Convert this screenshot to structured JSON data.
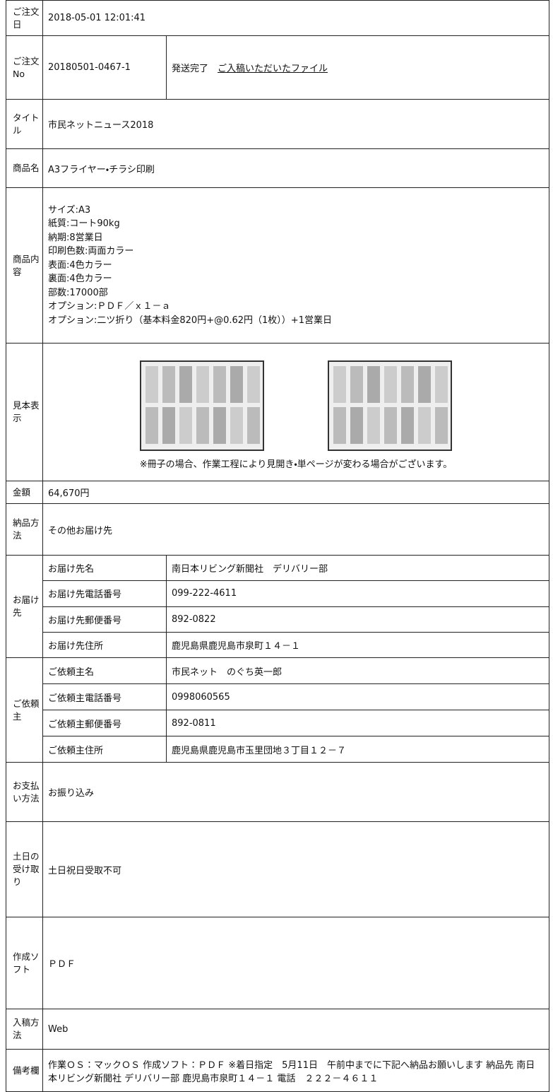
{
  "order": {
    "rows": [
      {
        "label": "ご注文日",
        "value": "2018-05-01 12:01:41"
      },
      {
        "label": "ご注文No",
        "value": "20180501-0467-1",
        "status": "発送完了",
        "link": "ご入稿いただいたファイル"
      },
      {
        "label": "タイトル",
        "value": "市民ネットニュース2018"
      },
      {
        "label": "商品名",
        "value": "A3フライヤー・チラシ印刷"
      },
      {
        "label": "商品内容",
        "lines": [
          "サイズ:A3",
          "紙質:コート90kg",
          "納期:8営業日",
          "印刷色数:両面カラー",
          "表面:4色カラー",
          "裏面:4色カラー",
          "部数:17000部",
          "オプション:ＰＤＦ／ｘ１－ａ",
          "オプション:二ツ折り（基本料金820円+@0.62円（1枚））+1営業日"
        ]
      },
      {
        "label": "見本表示",
        "note": "※冊子の場合、作業工程により見開き・単ページが変わる場合がございます。"
      },
      {
        "label": "金額",
        "value": "64,670円"
      },
      {
        "label": "納品方法",
        "value": "その他お届け先"
      },
      {
        "label": "お届け先",
        "fields": [
          [
            "お届け先名",
            "南日本リビング新聞社　デリバリー部"
          ],
          [
            "お届け先電話番号",
            "099-222-4611"
          ],
          [
            "お届け先郵便番号",
            "892-0822"
          ],
          [
            "お届け先住所",
            "鹿児島県鹿児島市泉町１４－１"
          ]
        ]
      },
      {
        "label": "ご依頼主",
        "fields": [
          [
            "ご依頼主名",
            "市民ネット　のぐち英一郎"
          ],
          [
            "ご依頼主電話番号",
            "0998060565"
          ],
          [
            "ご依頼主郵便番号",
            "892-0811"
          ],
          [
            "ご依頼主住所",
            "鹿児島県鹿児島市玉里団地３丁目１２－７"
          ]
        ]
      },
      {
        "label": "お支払い方法",
        "value": "お振り込み"
      },
      {
        "label": "土日の受け取り",
        "value": "土日祝日受取不可"
      },
      {
        "label": "作成ソフト",
        "value": "ＰＤＦ"
      },
      {
        "label": "入稿方法",
        "value": "Web"
      },
      {
        "label": "備考欄",
        "value": "作業ＯＳ：マックＯＳ 作成ソフト：ＰＤＦ ※着日指定　5月11日　午前中までに下記へ納品お願いします 納品先 南日本リビング新聞社 デリバリー部 鹿児島市泉町１４－１ 電話　２２２－４６１１"
      }
    ]
  }
}
